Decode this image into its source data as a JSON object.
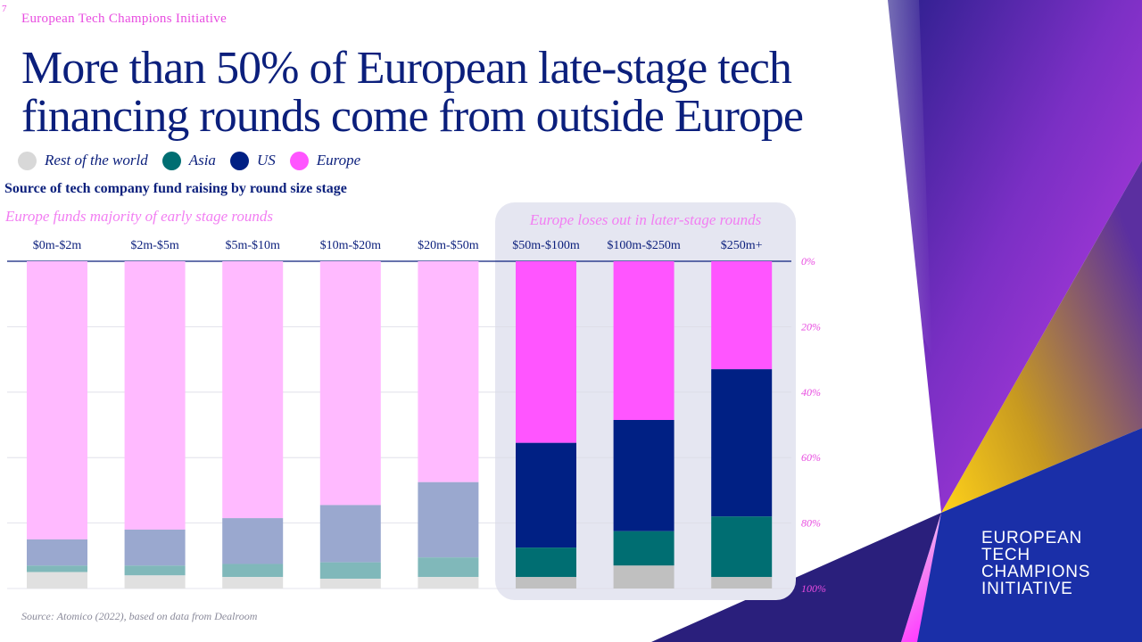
{
  "slide_number": "7",
  "header": {
    "org_name": "European Tech Champions Initiative"
  },
  "title": "More than 50% of European late-stage tech financing rounds come from outside Europe",
  "legend": [
    {
      "label": "Rest of the world",
      "color": "#d8d8d8"
    },
    {
      "label": "Asia",
      "color": "#006e72"
    },
    {
      "label": "US",
      "color": "#002084"
    },
    {
      "label": "Europe",
      "color": "#ff55ff"
    }
  ],
  "source": "Source: Atomico (2022), based on data from Dealroom",
  "logo_lines": [
    "EUROPEAN",
    "TECH",
    "CHAMPIONS",
    "INITIATIVE"
  ],
  "chart_data": {
    "type": "bar",
    "stacked": true,
    "orientation": "vertical-top-down",
    "subtitle": "Source of tech company fund raising by round size stage",
    "annotations": {
      "early": "Europe funds majority of early stage rounds",
      "late": "Europe loses out in later-stage rounds"
    },
    "categories": [
      "$0m-$2m",
      "$2m-$5m",
      "$5m-$10m",
      "$10m-$20m",
      "$20m-$50m",
      "$50m-$100m",
      "$100m-$250m",
      "$250m+"
    ],
    "highlighted_categories": [
      "$50m-$100m",
      "$100m-$250m",
      "$250m+"
    ],
    "series": [
      {
        "name": "Europe",
        "values": [
          85,
          82,
          78.5,
          74.5,
          67.5,
          55.5,
          48.5,
          33
        ],
        "color": "#ff55ff",
        "muted_color": "#ffbaff"
      },
      {
        "name": "US",
        "values": [
          8,
          11,
          14,
          17.5,
          23,
          32,
          34,
          45
        ],
        "color": "#002084",
        "muted_color": "#9aa8cf"
      },
      {
        "name": "Asia",
        "values": [
          2,
          3,
          4,
          5,
          6,
          9,
          10.5,
          18.5
        ],
        "color": "#006e72",
        "muted_color": "#80b8ba"
      },
      {
        "name": "Rest of the world",
        "values": [
          5,
          4,
          3.5,
          3,
          3.5,
          3.5,
          7,
          3.5
        ],
        "color": "#c0c0c0",
        "muted_color": "#e0e0e0"
      }
    ],
    "y_axis": {
      "position": "right",
      "ticks": [
        "0%",
        "20%",
        "40%",
        "60%",
        "80%",
        "100%"
      ],
      "ylim": [
        0,
        100
      ],
      "inverted": true
    },
    "grid": true,
    "highlight_panel_color": "#e5e6f1",
    "tick_label_color": "#e84ce0"
  }
}
